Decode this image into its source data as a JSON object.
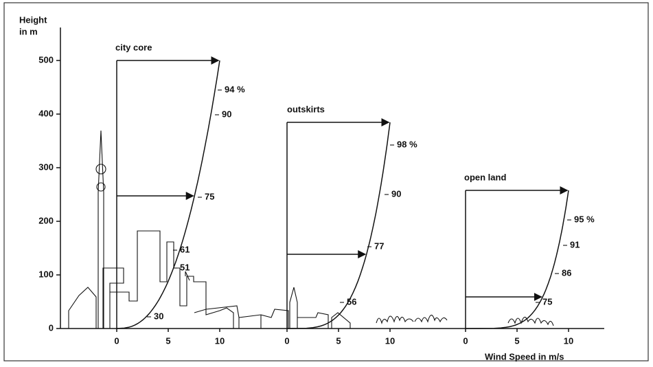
{
  "y_axis": {
    "label_line1": "Height",
    "label_line2": "in m",
    "ticks": [
      0,
      100,
      200,
      300,
      400,
      500
    ]
  },
  "x_axis": {
    "label": "Wind Speed in m/s"
  },
  "profiles": [
    {
      "name": "city core",
      "ticks": [
        0,
        5,
        10
      ],
      "percent_labels": [
        "94 %",
        "90",
        "75",
        "61",
        "51",
        "30"
      ]
    },
    {
      "name": "outskirts",
      "ticks": [
        0,
        5,
        10
      ],
      "percent_labels": [
        "98 %",
        "90",
        "77",
        "56"
      ]
    },
    {
      "name": "open land",
      "ticks": [
        0,
        5,
        10
      ],
      "percent_labels": [
        "95 %",
        "91",
        "86",
        "75"
      ]
    }
  ]
}
